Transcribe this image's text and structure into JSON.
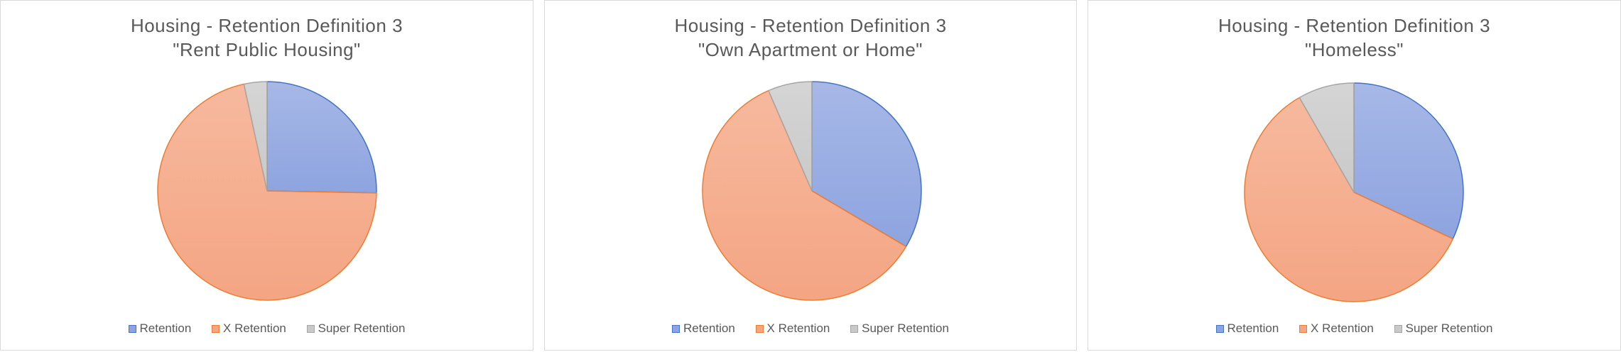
{
  "legend": {
    "items": [
      {
        "label": "Retention",
        "fill": "#8ea4e0",
        "stroke": "#4472c4"
      },
      {
        "label": "X Retention",
        "fill": "#f4a583",
        "stroke": "#ed7d31"
      },
      {
        "label": "Super Retention",
        "fill": "#c9c9c9",
        "stroke": "#a5a5a5"
      }
    ]
  },
  "chart_data": [
    {
      "type": "pie",
      "title": "Housing - Retention Definition 3",
      "subtitle": "\"Rent Public Housing\"",
      "categories": [
        "Retention",
        "X Retention",
        "Super Retention"
      ],
      "values": [
        25.3,
        71.3,
        3.4
      ]
    },
    {
      "type": "pie",
      "title": "Housing - Retention Definition 3",
      "subtitle": "\"Own Apartment or Home\"",
      "categories": [
        "Retention",
        "X Retention",
        "Super Retention"
      ],
      "values": [
        33.5,
        60.0,
        6.5
      ]
    },
    {
      "type": "pie",
      "title": "Housing - Retention Definition 3",
      "subtitle": "\"Homeless\"",
      "categories": [
        "Retention",
        "X Retention",
        "Super Retention"
      ],
      "values": [
        32.0,
        59.7,
        8.3
      ]
    }
  ]
}
